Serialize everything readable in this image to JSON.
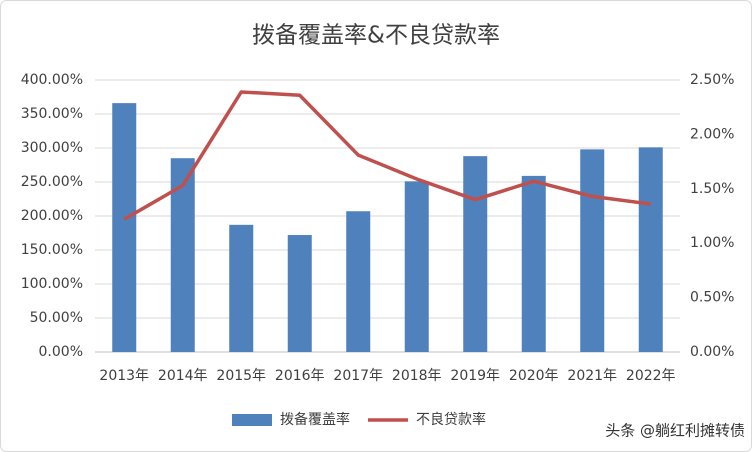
{
  "chart_data": {
    "type": "bar-line",
    "title": "拨备覆盖率&不良贷款率",
    "categories": [
      "2013年",
      "2014年",
      "2015年",
      "2016年",
      "2017年",
      "2018年",
      "2019年",
      "2020年",
      "2021年",
      "2022年"
    ],
    "series": [
      {
        "name": "拨备覆盖率",
        "type": "bar",
        "color": "#4f81bd",
        "values": [
          366,
          285,
          187,
          172,
          207,
          251,
          288,
          259,
          298,
          301
        ]
      },
      {
        "name": "不良贷款率",
        "type": "line",
        "axis": "y2",
        "color": "#c0504d",
        "values": [
          1.22,
          1.53,
          2.39,
          2.36,
          1.81,
          1.59,
          1.4,
          1.57,
          1.43,
          1.36
        ]
      }
    ],
    "ylim": [
      0,
      400
    ],
    "yticks": [
      {
        "value": 0,
        "label": "0.00%"
      },
      {
        "value": 50,
        "label": "50.00%"
      },
      {
        "value": 100,
        "label": "100.00%"
      },
      {
        "value": 150,
        "label": "150.00%"
      },
      {
        "value": 200,
        "label": "200.00%"
      },
      {
        "value": 250,
        "label": "250.00%"
      },
      {
        "value": 300,
        "label": "300.00%"
      },
      {
        "value": 350,
        "label": "350.00%"
      },
      {
        "value": 400,
        "label": "400.00%"
      }
    ],
    "y2lim": [
      0,
      2.5
    ],
    "y2ticks": [
      {
        "value": 0,
        "label": "0.00%"
      },
      {
        "value": 0.5,
        "label": "0.50%"
      },
      {
        "value": 1,
        "label": "1.00%"
      },
      {
        "value": 1.5,
        "label": "1.50%"
      },
      {
        "value": 2,
        "label": "2.00%"
      },
      {
        "value": 2.5,
        "label": "2.50%"
      }
    ],
    "grid": true,
    "legend": "bottom"
  },
  "watermark": "头条 @躺红利摊转债"
}
